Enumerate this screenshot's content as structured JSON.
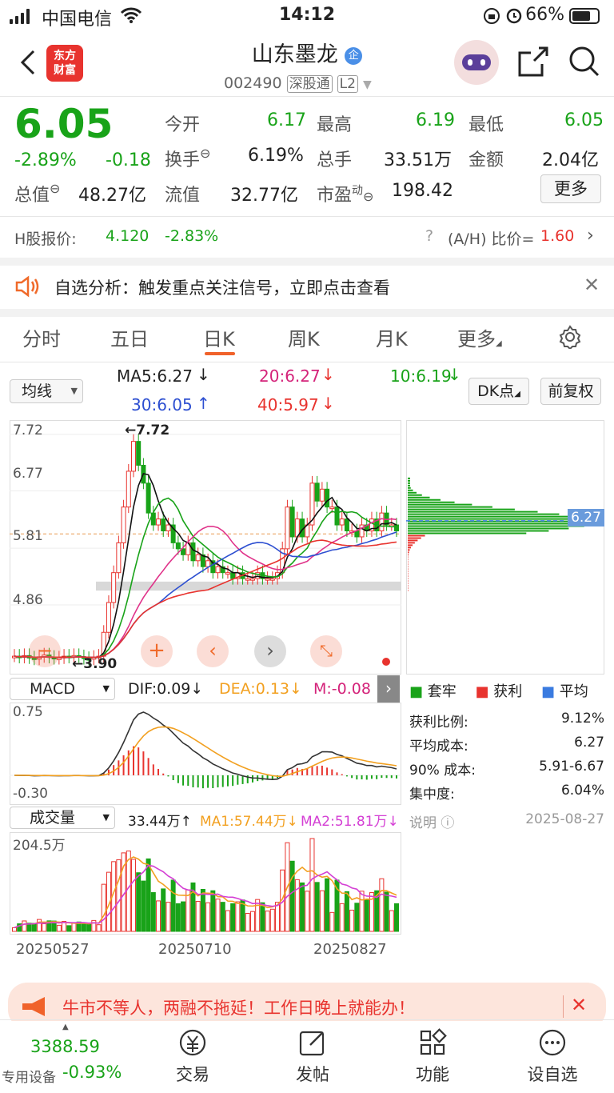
{
  "status": {
    "carrier": "中国电信",
    "time": "14:12",
    "battery": "66%"
  },
  "header": {
    "stock_name": "山东墨龙",
    "code": "002490",
    "exchange_badge": "深股通",
    "level_badge": "L2",
    "logo_line1": "东方",
    "logo_line2": "财富",
    "badge": "企"
  },
  "quote": {
    "price": "6.05",
    "change_pct": "-2.89%",
    "change": "-0.18",
    "open_label": "今开",
    "open": "6.17",
    "high_label": "最高",
    "high": "6.19",
    "low_label": "最低",
    "low": "6.05",
    "turnover_label": "换手",
    "turnover": "6.19%",
    "volume_label": "总手",
    "volume": "33.51万",
    "amount_label": "金额",
    "amount": "2.04亿",
    "mktcap_label": "总值",
    "mktcap": "48.27亿",
    "float_label": "流值",
    "float": "32.77亿",
    "pe_label": "市盈",
    "pe_sup": "动",
    "pe": "198.42",
    "more": "更多"
  },
  "hshare": {
    "label": "H股报价:",
    "price": "4.120",
    "pct": "-2.83%",
    "ratio_label": "(A/H) 比价=",
    "ratio": "1.60"
  },
  "notice": {
    "text": "自选分析：触发重点关注信号，立即点击查看"
  },
  "tabs": [
    "分时",
    "五日",
    "日K",
    "周K",
    "月K",
    "更多"
  ],
  "ma": {
    "select": "均线",
    "ma5": "MA5:6.27",
    "ma10": "10:6.19",
    "ma20": "20:6.27",
    "ma30": "30:6.05",
    "ma40": "40:5.97",
    "dk": "DK点",
    "fq": "前复权"
  },
  "chart_data": {
    "type": "candlestick",
    "y_ticks": [
      "7.72",
      "6.77",
      "5.81",
      "4.86"
    ],
    "high_mark": "7.72",
    "low_mark": "3.90",
    "cost_price": "6.27",
    "dates": [
      "20250527",
      "20250710",
      "20250827"
    ],
    "macd": {
      "select": "MACD",
      "dif": "DIF:0.09",
      "dea": "DEA:0.13",
      "m": "M:-0.08",
      "top": "0.75",
      "bottom": "-0.30"
    },
    "volume": {
      "select": "成交量",
      "vol": "33.44万",
      "ma1": "MA1:57.44万",
      "ma2": "MA2:51.81万",
      "top": "204.5万"
    },
    "closes": [
      4.0,
      3.98,
      4.01,
      3.97,
      3.95,
      3.99,
      4.02,
      3.98,
      3.96,
      3.97,
      4.0,
      3.98,
      4.01,
      3.99,
      3.96,
      3.95,
      3.98,
      4.0,
      4.4,
      4.9,
      5.4,
      5.9,
      6.5,
      7.1,
      7.6,
      7.2,
      6.9,
      6.4,
      6.2,
      6.3,
      6.1,
      6.2,
      5.9,
      5.8,
      5.7,
      5.9,
      5.6,
      5.7,
      5.5,
      5.6,
      5.4,
      5.5,
      5.4,
      5.4,
      5.3,
      5.4,
      5.3,
      5.3,
      5.3,
      5.4,
      5.3,
      5.3,
      5.3,
      5.4,
      5.8,
      6.5,
      6.0,
      6.3,
      6.0,
      6.2,
      6.9,
      6.6,
      6.8,
      6.5,
      6.5,
      6.2,
      6.3,
      6.1,
      6.1,
      6.0,
      6.2,
      6.1,
      6.3,
      6.1,
      6.4,
      6.2,
      6.2,
      6.1
    ]
  },
  "chip": {
    "legend": [
      "套牢",
      "获利",
      "平均"
    ],
    "rows": [
      [
        "获利比例:",
        "9.12%"
      ],
      [
        "平均成本:",
        "6.27"
      ],
      [
        "90% 成本:",
        "5.91-6.67"
      ],
      [
        "集中度:",
        "6.04%"
      ]
    ],
    "note": "说明",
    "date": "2025-08-27"
  },
  "ad": {
    "text": "牛市不等人，两融不拖延！工作日晚上就能办！"
  },
  "bottom": {
    "index": "3388.59",
    "index_label": "专用设备",
    "index_pct": "-0.93%",
    "nav": [
      "交易",
      "发帖",
      "功能",
      "设自选"
    ]
  }
}
